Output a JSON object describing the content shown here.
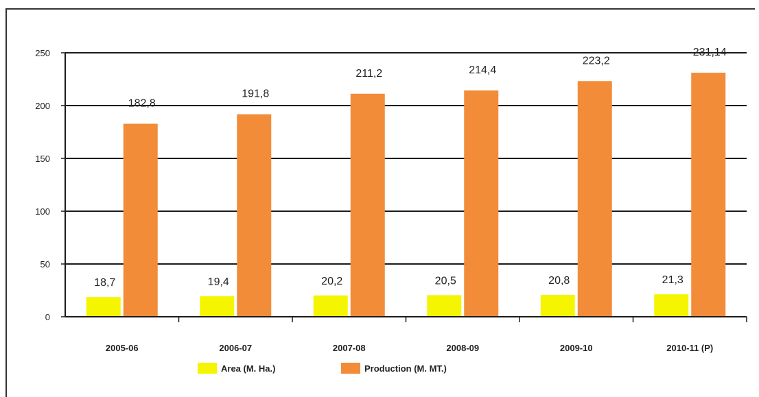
{
  "chart_data": {
    "type": "bar",
    "categories": [
      "2005-06",
      "2006-07",
      "2007-08",
      "2008-09",
      "2009-10",
      "2010-11 (P)"
    ],
    "series": [
      {
        "name": "Area (M. Ha.)",
        "values": [
          18.7,
          19.4,
          20.2,
          20.5,
          20.8,
          21.3
        ],
        "labels": [
          "18,7",
          "19,4",
          "20,2",
          "20,5",
          "20,8",
          "21,3"
        ],
        "color": "#f5f500"
      },
      {
        "name": "Production (M. MT.)",
        "values": [
          182.8,
          191.8,
          211.2,
          214.4,
          223.2,
          231.14
        ],
        "labels": [
          "182,8",
          "191,8",
          "211,2",
          "214,4",
          "223,2",
          "231,14"
        ],
        "color": "#f28c38"
      }
    ],
    "yticks": [
      "0",
      "50",
      "100",
      "150",
      "200",
      "250"
    ],
    "ylim": [
      0,
      250
    ],
    "grid": true,
    "legend_position": "bottom"
  }
}
